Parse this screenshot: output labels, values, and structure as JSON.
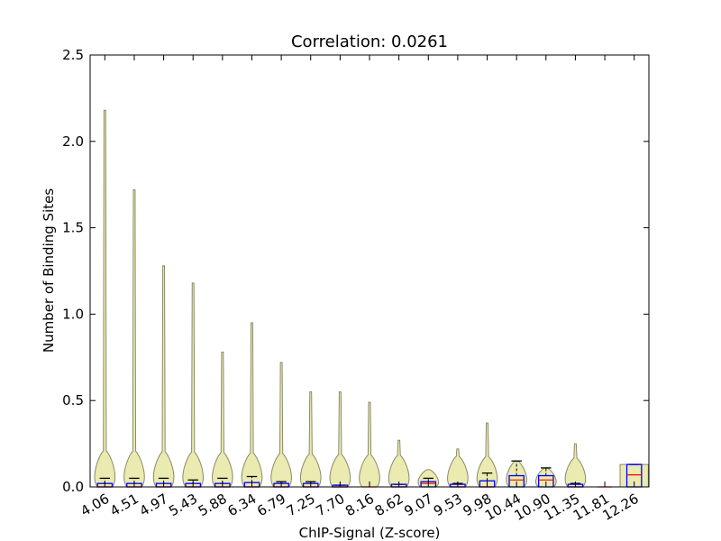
{
  "chart_data": {
    "type": "violin",
    "title": "Correlation: 0.0261",
    "xlabel": "ChIP-Signal (Z-score)",
    "ylabel": "Number of Binding Sites",
    "ylim": [
      0,
      2.5
    ],
    "yticks": [
      "0.0",
      "0.5",
      "1.0",
      "1.5",
      "2.0",
      "2.5"
    ],
    "grid": false,
    "categories": [
      "4.06",
      "4.51",
      "4.97",
      "5.43",
      "5.88",
      "6.34",
      "6.79",
      "7.25",
      "7.70",
      "8.16",
      "8.62",
      "9.07",
      "9.53",
      "9.98",
      "10.44",
      "10.90",
      "11.35",
      "11.81",
      "12.26"
    ],
    "violin_max": [
      2.18,
      1.72,
      1.28,
      1.18,
      0.78,
      0.95,
      0.72,
      0.55,
      0.55,
      0.49,
      0.27,
      0.1,
      0.22,
      0.37,
      0.15,
      0.11,
      0.25,
      0.0,
      0.13
    ],
    "box": [
      {
        "q1": 0.0,
        "median": 0.0,
        "q3": 0.02,
        "whisker_high": 0.05
      },
      {
        "q1": 0.0,
        "median": 0.0,
        "q3": 0.02,
        "whisker_high": 0.05
      },
      {
        "q1": 0.0,
        "median": 0.0,
        "q3": 0.02,
        "whisker_high": 0.05
      },
      {
        "q1": 0.0,
        "median": 0.0,
        "q3": 0.02,
        "whisker_high": 0.04
      },
      {
        "q1": 0.0,
        "median": 0.0,
        "q3": 0.02,
        "whisker_high": 0.05
      },
      {
        "q1": 0.0,
        "median": 0.0,
        "q3": 0.025,
        "whisker_high": 0.06
      },
      {
        "q1": 0.0,
        "median": 0.0,
        "q3": 0.02,
        "whisker_high": 0.03
      },
      {
        "q1": 0.0,
        "median": 0.0,
        "q3": 0.02,
        "whisker_high": 0.03
      },
      {
        "q1": 0.0,
        "median": 0.0,
        "q3": 0.01,
        "whisker_high": 0.01
      },
      {
        "q1": 0.0,
        "median": 0.0,
        "q3": 0.0,
        "whisker_high": 0.0
      },
      {
        "q1": 0.0,
        "median": 0.0,
        "q3": 0.015,
        "whisker_high": 0.015
      },
      {
        "q1": 0.0,
        "median": 0.02,
        "q3": 0.03,
        "whisker_high": 0.05
      },
      {
        "q1": 0.0,
        "median": 0.0,
        "q3": 0.015,
        "whisker_high": 0.02
      },
      {
        "q1": 0.0,
        "median": 0.0,
        "q3": 0.035,
        "whisker_high": 0.08
      },
      {
        "q1": 0.0,
        "median": 0.04,
        "q3": 0.065,
        "whisker_high": 0.15
      },
      {
        "q1": 0.0,
        "median": 0.04,
        "q3": 0.065,
        "whisker_high": 0.11
      },
      {
        "q1": 0.0,
        "median": 0.0,
        "q3": 0.015,
        "whisker_high": 0.02
      },
      {
        "q1": 0.0,
        "median": 0.0,
        "q3": 0.0,
        "whisker_high": 0.0
      },
      {
        "q1": 0.0,
        "median": 0.07,
        "q3": 0.13,
        "whisker_high": 0.13
      }
    ],
    "colors": {
      "violin_fill": "#e8e8a8",
      "violin_edge": "#8a8a6a",
      "box_edge": "#0000ff",
      "median": "#ff0000",
      "whisker": "#000000"
    }
  }
}
